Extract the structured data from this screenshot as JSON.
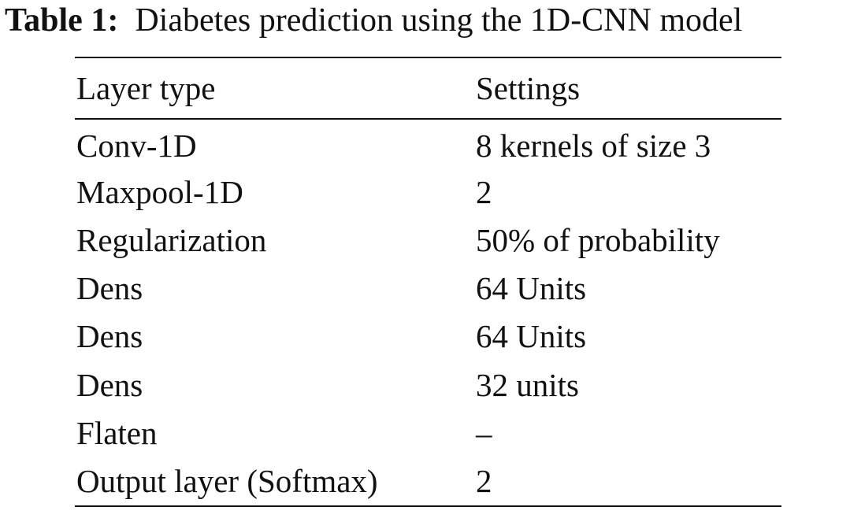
{
  "caption": {
    "label": "Table 1:",
    "text": "Diabetes prediction using the 1D-CNN model"
  },
  "table": {
    "headers": [
      "Layer type",
      "Settings"
    ],
    "rows": [
      [
        "Conv-1D",
        "8 kernels of size 3"
      ],
      [
        "Maxpool-1D",
        "2"
      ],
      [
        "Regularization",
        "50% of probability"
      ],
      [
        "Dens",
        "64 Units"
      ],
      [
        "Dens",
        "64 Units"
      ],
      [
        "Dens",
        "32 units"
      ],
      [
        "Flaten",
        "–"
      ],
      [
        "Output layer (Softmax)",
        "2"
      ]
    ]
  }
}
